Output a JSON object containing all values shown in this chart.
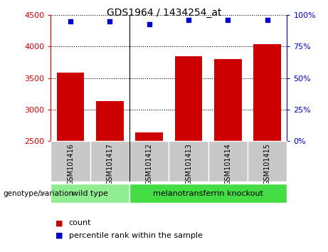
{
  "title": "GDS1964 / 1434254_at",
  "samples": [
    "GSM101416",
    "GSM101417",
    "GSM101412",
    "GSM101413",
    "GSM101414",
    "GSM101415"
  ],
  "counts": [
    3590,
    3130,
    2640,
    3850,
    3800,
    4040
  ],
  "percentile_ranks": [
    95,
    95,
    93,
    96,
    96,
    96
  ],
  "ylim_left": [
    2500,
    4500
  ],
  "ylim_right": [
    0,
    100
  ],
  "yticks_left": [
    2500,
    3000,
    3500,
    4000,
    4500
  ],
  "yticks_right": [
    0,
    25,
    50,
    75,
    100
  ],
  "bar_color": "#cc0000",
  "dot_color": "#0000cc",
  "bar_width": 0.7,
  "group_wt_label": "wild type",
  "group_ko_label": "melanotransferrin knockout",
  "group_wt_color": "#90ee90",
  "group_ko_color": "#44dd44",
  "group_wt_count": 2,
  "group_ko_count": 4,
  "legend_count_label": "count",
  "legend_pct_label": "percentile rank within the sample",
  "genotype_label": "genotype/variation"
}
